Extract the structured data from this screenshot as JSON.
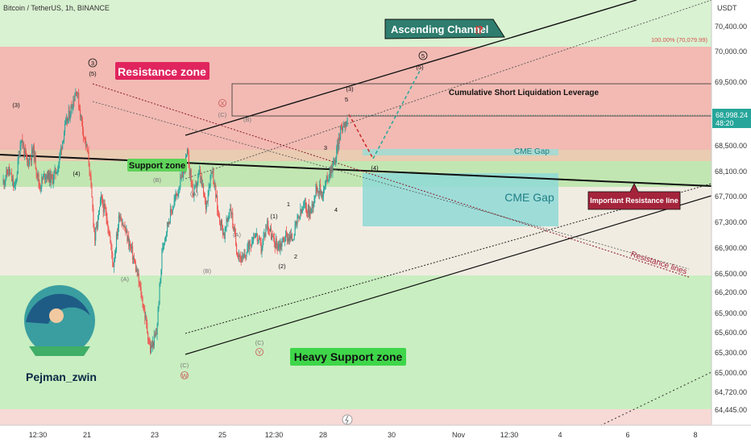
{
  "header": {
    "title": "Bitcoin / TetherUS, 1h, BINANCE",
    "currency": "USDT"
  },
  "price_axis": {
    "ticks": [
      "70,400.00",
      "70,000.00",
      "69,500.00",
      "68,500.00",
      "68,100.00",
      "67,700.00",
      "67,300.00",
      "66,900.00",
      "66,500.00",
      "66,200.00",
      "65,900.00",
      "65,600.00",
      "65,300.00",
      "65,000.00",
      "64,720.00",
      "64,445.00"
    ],
    "current_price": "68,998.24",
    "countdown": "48:20",
    "fib_label": "100.00% (70,079.99)"
  },
  "time_axis": {
    "ticks": [
      "12:30",
      "21",
      "23",
      "25",
      "12:30",
      "28",
      "30",
      "Nov",
      "12:30",
      "4",
      "6",
      "8"
    ]
  },
  "labels": {
    "resistance_zone": "Resistance zone",
    "support_zone": "Support zone",
    "heavy_support_zone": "Heavy Support zone",
    "ascending_channel": "Ascending Channel",
    "channel_marks": "⁉",
    "cumulative_short": "Cumulative Short Liquidation Leverage",
    "cme_gap_small": "CME Gap",
    "cme_gap_large": "CME Gap",
    "important_resistance": "Important Resistance line",
    "resistance_lines": "Resistance lines",
    "author": "Pejman_zwin"
  },
  "wave_labels": {
    "w3_circle": "3",
    "w3_paren": "(5)",
    "w5_circle": "5",
    "w5_paren": "(5)",
    "p3_left": "(3)",
    "p4_left": "(4)",
    "pB1": "(B)",
    "pA1": "(A)",
    "pA2": "(A)",
    "pB2": "(B)",
    "pB3": "(B)",
    "pC1": "(C)",
    "pX": "X",
    "pW": "W",
    "pA3": "(A)",
    "pC2": "(C)",
    "pY": "Y",
    "n1": "1",
    "n2": "2",
    "n3": "3",
    "n4": "4",
    "n5": "5",
    "p1": "(1)",
    "p2": "(2)",
    "p3": "(3)",
    "p4": "(4)"
  },
  "colors": {
    "resistance_zone": "#f4b6b0",
    "support_green": "#b7e3a8",
    "heavy_support": "#c6edc0",
    "cme_gap": "#8ed9d6",
    "bull": "#26a69a",
    "bear": "#ef5350",
    "price_tag": "#26a69a",
    "resistance_label": "#e0245e",
    "channel_label": "#2e7d6e",
    "important_label": "#a4243b"
  },
  "chart_data": {
    "type": "candlestick",
    "title": "Bitcoin / TetherUS, 1h, BINANCE",
    "xlabel": "",
    "ylabel": "USDT",
    "ylim": [
      64300,
      70800
    ],
    "x_ticks": [
      "12:30",
      "21",
      "23",
      "25",
      "12:30",
      "28",
      "30",
      "Nov",
      "12:30",
      "4",
      "6",
      "8"
    ],
    "close_path": [
      68000,
      68200,
      67900,
      68700,
      68300,
      68500,
      67950,
      68150,
      68050,
      68250,
      68800,
      69100,
      69450,
      68850,
      68350,
      67150,
      67750,
      67450,
      66750,
      67550,
      67250,
      66950,
      66550,
      66050,
      65450,
      65700,
      67050,
      67450,
      67750,
      68050,
      68450,
      67800,
      68150,
      67650,
      68250,
      67550,
      67200,
      67650,
      67000,
      66800,
      67050,
      67250,
      67000,
      67400,
      67100,
      67050,
      67200,
      67150,
      67450,
      67650,
      67550,
      67950,
      67850,
      68150,
      68350,
      68850,
      68998.24
    ],
    "current_price": 68998.24,
    "zones": [
      {
        "name": "Resistance zone",
        "from": 68400,
        "to": 70080
      },
      {
        "name": "Support zone",
        "from": 67800,
        "to": 68400
      },
      {
        "name": "Heavy Support zone",
        "from": 64300,
        "to": 66500
      },
      {
        "name": "CME Gap",
        "from": 67250,
        "to": 68050
      }
    ],
    "projection": {
      "points": [
        68998.24,
        68250,
        69650
      ],
      "labels": [
        "(4)",
        "(5)"
      ]
    }
  }
}
